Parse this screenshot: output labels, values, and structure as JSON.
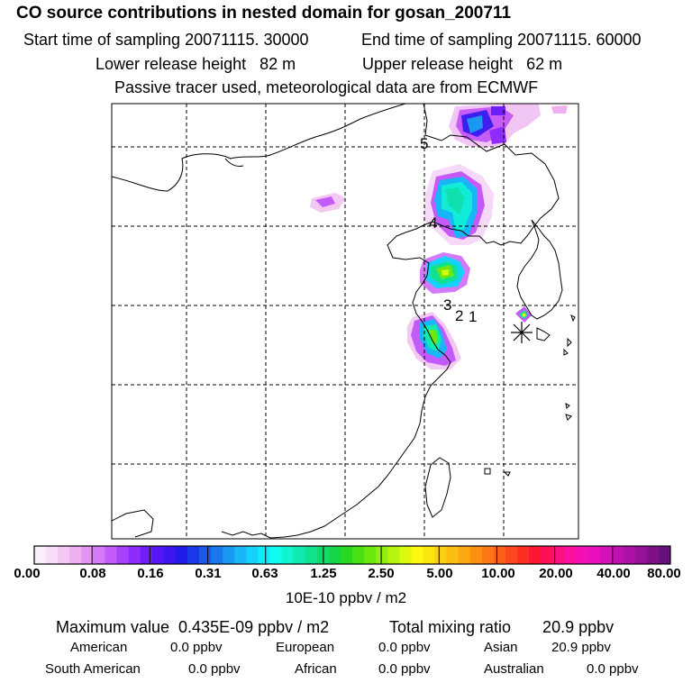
{
  "header": {
    "title": "CO  source contributions in nested domain for gosan_200711",
    "start_time": "Start time of sampling 20071115. 30000",
    "end_time": "End time of sampling 20071115. 60000",
    "lower_release": "Lower release height   82 m",
    "upper_release": "Upper release height   62 m",
    "tracer_note": "Passive tracer used, meteorological data are from ECMWF"
  },
  "map": {
    "point_labels": [
      "5",
      "4",
      "3",
      "2",
      "1"
    ],
    "receptor_icon": "asterisk-receptor-icon"
  },
  "colorbar": {
    "tick_labels": [
      "0.00",
      "0.08",
      "0.16",
      "0.31",
      "0.63",
      "1.25",
      "2.50",
      "5.00",
      "10.00",
      "20.00",
      "40.00",
      "80.00"
    ],
    "units": "10E-10 ppbv / m2",
    "colors": [
      "#fbeefb",
      "#f8ddf8",
      "#f3c8f3",
      "#eeb0f0",
      "#e394f5",
      "#d47af8",
      "#c35bfb",
      "#a940fc",
      "#8e2cfb",
      "#6f1ef8",
      "#5418f4",
      "#3b16ee",
      "#1f1ce8",
      "#1a3ae8",
      "#1a58ea",
      "#1a78ee",
      "#1a98f2",
      "#18b6f6",
      "#14d2fa",
      "#10ecfc",
      "#10fcf0",
      "#10f4d0",
      "#10eab0",
      "#10e28e",
      "#10da6c",
      "#18d448",
      "#28d824",
      "#48e012",
      "#6ce810",
      "#92f010",
      "#b6f410",
      "#daf810",
      "#fcf810",
      "#fce410",
      "#fcd010",
      "#fcbc10",
      "#fca810",
      "#fc9010",
      "#fc7814",
      "#fc6018",
      "#fc481c",
      "#fc3020",
      "#fc1834",
      "#fc1058",
      "#fc1080",
      "#fc10a0",
      "#f410b4",
      "#e810bc",
      "#d610b8",
      "#c210b0",
      "#ac10a4",
      "#961098",
      "#7e108a",
      "#66107c"
    ]
  },
  "stats": {
    "maximum": "Maximum value  0.435E-09 ppbv / m2",
    "total": "Total mixing ratio       20.9 ppbv",
    "american_label": "American",
    "american_value": "0.0 ppbv",
    "european_label": "European",
    "european_value": "0.0 ppbv",
    "asian_label": "Asian",
    "asian_value": "20.9 ppbv",
    "south_american_label": "South American",
    "south_american_value": "0.0 ppbv",
    "african_label": "African",
    "african_value": "0.0 ppbv",
    "australian_label": "Australian",
    "australian_value": "0.0 ppbv"
  }
}
